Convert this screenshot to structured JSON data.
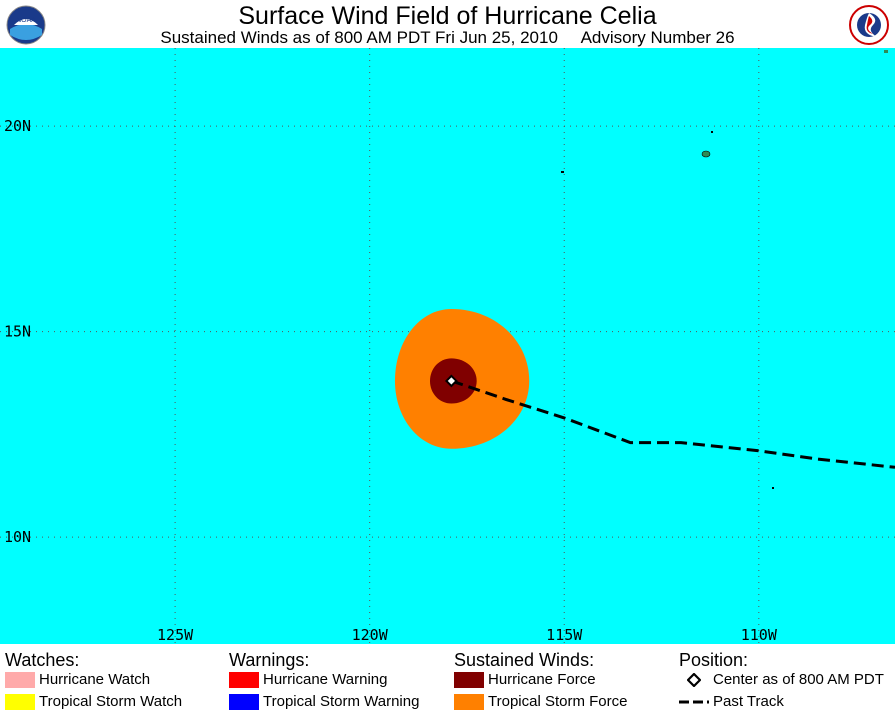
{
  "header": {
    "title": "Surface Wind Field of Hurricane Celia",
    "subtitle": "Sustained Winds as of 800 AM PDT Fri Jun 25, 2010     Advisory Number 26",
    "left_logo_icon": "noaa-logo-icon",
    "right_logo_icon": "nws-logo-icon"
  },
  "map": {
    "ocean_color": "#00ffff",
    "lat_labels": [
      "20N",
      "15N",
      "10N"
    ],
    "lon_labels": [
      "125W",
      "120W",
      "115W",
      "110W"
    ],
    "lat_values": [
      20,
      15,
      10
    ],
    "lon_values": [
      -125,
      -120,
      -115,
      -110
    ],
    "lon_range": [
      -129.5,
      -106.5
    ],
    "lat_range": [
      7.4,
      21.9
    ],
    "center": {
      "lat": 13.8,
      "lon": -117.9
    },
    "past_track": [
      [
        -117.9,
        13.8
      ],
      [
        -116.5,
        13.35
      ],
      [
        -115.0,
        12.9
      ],
      [
        -113.3,
        12.3
      ],
      [
        -112.0,
        12.3
      ],
      [
        -110.0,
        12.1
      ],
      [
        -108.5,
        11.9
      ],
      [
        -106.5,
        11.7
      ]
    ],
    "tropical_storm_force_color": "#ff8000",
    "hurricane_force_color": "#800000",
    "tropical_storm_force_radius": {
      "n": 1.75,
      "e": 2.0,
      "s": 1.65,
      "w": 1.45
    },
    "hurricane_force_radius": {
      "n": 0.55,
      "e": 0.65,
      "s": 0.55,
      "w": 0.55
    }
  },
  "legend": {
    "watches": {
      "heading": "Watches:",
      "items": [
        {
          "label": "Hurricane Watch",
          "color": "#ffaaaa"
        },
        {
          "label": "Tropical Storm Watch",
          "color": "#ffff00"
        }
      ]
    },
    "warnings": {
      "heading": "Warnings:",
      "items": [
        {
          "label": "Hurricane Warning",
          "color": "#ff0000"
        },
        {
          "label": "Tropical Storm Warning",
          "color": "#0000ff"
        }
      ]
    },
    "winds": {
      "heading": "Sustained Winds:",
      "items": [
        {
          "label": "Hurricane Force",
          "color": "#800000"
        },
        {
          "label": "Tropical Storm Force",
          "color": "#ff8000"
        }
      ]
    },
    "position": {
      "heading": "Position:",
      "center_label": "Center as of 800 AM PDT",
      "track_label": "Past Track"
    }
  }
}
